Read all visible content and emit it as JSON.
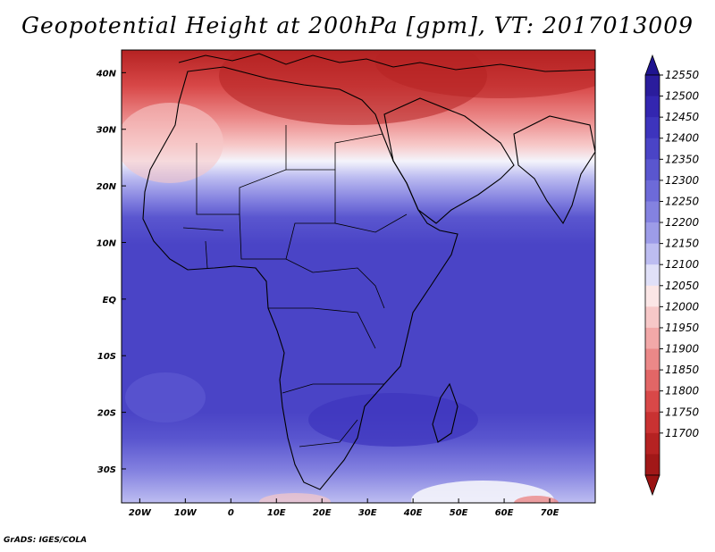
{
  "title": "Geopotential Height at 200hPa [gpm], VT: 2017013009",
  "credit": "GrADS: IGES/COLA",
  "map": {
    "lon_range": [
      -24,
      80
    ],
    "lat_range": [
      -36,
      44
    ],
    "lon_ticks": [
      {
        "lon": -20,
        "label": "20W"
      },
      {
        "lon": -10,
        "label": "10W"
      },
      {
        "lon": 0,
        "label": "0"
      },
      {
        "lon": 10,
        "label": "10E"
      },
      {
        "lon": 20,
        "label": "20E"
      },
      {
        "lon": 30,
        "label": "30E"
      },
      {
        "lon": 40,
        "label": "40E"
      },
      {
        "lon": 50,
        "label": "50E"
      },
      {
        "lon": 60,
        "label": "60E"
      },
      {
        "lon": 70,
        "label": "70E"
      }
    ],
    "lat_ticks": [
      {
        "lat": 40,
        "label": "40N"
      },
      {
        "lat": 30,
        "label": "30N"
      },
      {
        "lat": 20,
        "label": "20N"
      },
      {
        "lat": 10,
        "label": "10N"
      },
      {
        "lat": 0,
        "label": "EQ"
      },
      {
        "lat": -10,
        "label": "10S"
      },
      {
        "lat": -20,
        "label": "20S"
      },
      {
        "lat": -30,
        "label": "30S"
      }
    ]
  },
  "colorbar": {
    "labels": [
      "12550",
      "12500",
      "12450",
      "12400",
      "12350",
      "12300",
      "12250",
      "12200",
      "12150",
      "12100",
      "12050",
      "12000",
      "11950",
      "11900",
      "11850",
      "11800",
      "11750",
      "11700"
    ],
    "colors": [
      "#2a1c9c",
      "#3326b0",
      "#3d34bd",
      "#4a44c6",
      "#5a56cf",
      "#6d6ad8",
      "#8482e0",
      "#9d9ce8",
      "#bdbdf1",
      "#e0e0f8",
      "#fbe6e6",
      "#f7c8c8",
      "#f2a8a8",
      "#eb8888",
      "#e26666",
      "#d84848",
      "#c93232",
      "#b52222",
      "#a11818"
    ],
    "top_arrow_color": "#1f1490",
    "bottom_arrow_color": "#9a1212"
  },
  "field_colors": {
    "core_blue": "#4a44c6",
    "deep_blue": "#3d34bd",
    "mid_blue": "#5a56cf",
    "light_blue": "#8482e0",
    "pale_blue": "#bdbdf1",
    "white": "#f4f4fb",
    "pale_red": "#f7c8c8",
    "light_red": "#eb8888",
    "mid_red": "#d84848",
    "deep_red": "#b52222"
  }
}
